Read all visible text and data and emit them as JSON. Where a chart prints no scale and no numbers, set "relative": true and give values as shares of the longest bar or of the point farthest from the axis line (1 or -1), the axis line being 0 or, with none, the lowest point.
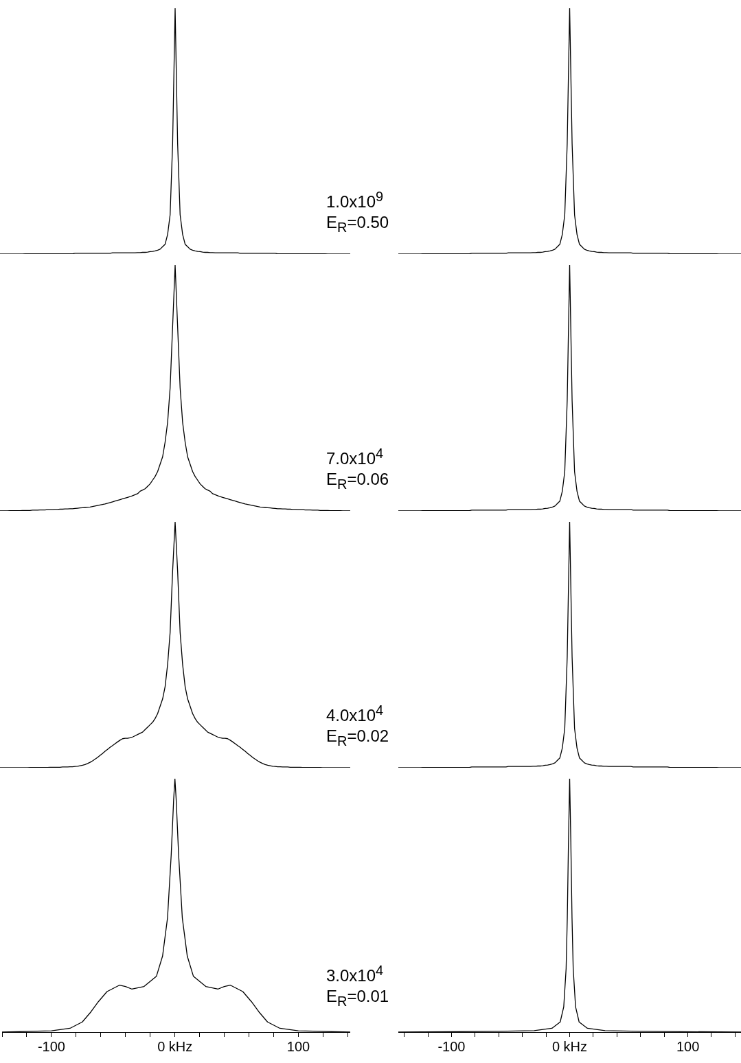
{
  "chart_data": [
    {
      "type": "line",
      "relative": true,
      "tick_labels": false,
      "color": "#000000",
      "categories": [
        null,
        null,
        null,
        null,
        null,
        null,
        null,
        null,
        null,
        null,
        null,
        null,
        null,
        null,
        null,
        null,
        null,
        null,
        null,
        null,
        null,
        null,
        null,
        null,
        null,
        null,
        null,
        null,
        null,
        null,
        null,
        null,
        null,
        null,
        null,
        null,
        null,
        null,
        null,
        null,
        null,
        null,
        null,
        null,
        null,
        null,
        null,
        null,
        null,
        null,
        null,
        null,
        null,
        null,
        null,
        null,
        null,
        null,
        null,
        null,
        null,
        null,
        null,
        null,
        null,
        null,
        null,
        null,
        null,
        null,
        null,
        null,
        null,
        null,
        null,
        null,
        null,
        null,
        null,
        null,
        null,
        null,
        null,
        null,
        null,
        null,
        null,
        null,
        null,
        null,
        null,
        null,
        null,
        null,
        null,
        null,
        null,
        null,
        null,
        null,
        null,
        null,
        null,
        null,
        null,
        null,
        null,
        null,
        null,
        null,
        null,
        null,
        null,
        null,
        null,
        null,
        null,
        null,
        null,
        null,
        null,
        null,
        null,
        null,
        null,
        null,
        null,
        null,
        null,
        null,
        null,
        null,
        null,
        null,
        null,
        null,
        null,
        null,
        null,
        null,
        null
      ],
      "values": [
        0,
        0,
        0,
        0,
        0,
        0,
        0,
        0,
        0,
        0,
        0.001,
        0.001,
        0.001,
        0.001,
        0.001,
        0.001,
        0.001,
        0.001,
        0.001,
        0.001,
        0.001,
        0.001,
        0.001,
        0.001,
        0.001,
        0.001,
        0.001,
        0.001,
        0.001,
        0.001,
        0.003,
        0.003,
        0.003,
        0.003,
        0.003,
        0.003,
        0.003,
        0.003,
        0.003,
        0.003,
        0.003,
        0.003,
        0.003,
        0.003,
        0.003,
        0.005,
        0.005,
        0.005,
        0.005,
        0.005,
        0.005,
        0.005,
        0.005,
        0.005,
        0.005,
        0.006,
        0.006,
        0.007,
        0.007,
        0.008,
        0.01,
        0.011,
        0.013,
        0.016,
        0.02,
        0.03,
        0.04,
        0.08,
        0.16,
        0.45,
        1,
        0.45,
        0.16,
        0.08,
        0.04,
        0.03,
        0.02,
        0.016,
        0.013,
        0.011,
        0.01,
        0.008,
        0.007,
        0.007,
        0.006,
        0.006,
        0.005,
        0.005,
        0.005,
        0.005,
        0.005,
        0.005,
        0.005,
        0.005,
        0.005,
        0.005,
        0.003,
        0.003,
        0.003,
        0.003,
        0.003,
        0.003,
        0.003,
        0.003,
        0.003,
        0.003,
        0.003,
        0.003,
        0.003,
        0.003,
        0.003,
        0.001,
        0.001,
        0.001,
        0.001,
        0.001,
        0.001,
        0.001,
        0.001,
        0.001,
        0.001,
        0.001,
        0.001,
        0.001,
        0.001,
        0.001,
        0.001,
        0.001,
        0.001,
        0.001,
        0.001,
        0,
        0,
        0,
        0,
        0,
        0,
        0,
        0,
        0,
        0
      ],
      "annotations": [
        "1.0x10$^{9}$",
        "E$_{R}$=0.50"
      ]
    },
    {
      "type": "line",
      "relative": true,
      "tick_labels": false,
      "color": "#000000",
      "categories": [
        null,
        null,
        null,
        null,
        null,
        null,
        null,
        null,
        null,
        null,
        null,
        null,
        null,
        null,
        null,
        null,
        null,
        null,
        null,
        null,
        null,
        null,
        null,
        null,
        null,
        null,
        null,
        null,
        null,
        null,
        null,
        null,
        null,
        null,
        null,
        null,
        null,
        null,
        null,
        null,
        null,
        null,
        null,
        null,
        null,
        null,
        null,
        null,
        null,
        null,
        null,
        null,
        null,
        null,
        null,
        null,
        null,
        null,
        null,
        null,
        null,
        null,
        null,
        null,
        null,
        null,
        null,
        null,
        null,
        null,
        null,
        null,
        null,
        null,
        null,
        null,
        null,
        null,
        null,
        null,
        null,
        null,
        null,
        null,
        null,
        null,
        null,
        null,
        null,
        null,
        null,
        null,
        null,
        null,
        null,
        null,
        null,
        null,
        null,
        null,
        null,
        null,
        null,
        null,
        null,
        null,
        null,
        null,
        null,
        null,
        null,
        null,
        null,
        null,
        null,
        null,
        null,
        null,
        null,
        null,
        null,
        null,
        null,
        null,
        null,
        null,
        null,
        null,
        null,
        null,
        null,
        null,
        null,
        null,
        null,
        null,
        null,
        null,
        null,
        null,
        null
      ],
      "values": [
        0,
        0,
        0,
        0,
        0,
        0,
        0,
        0,
        0,
        0,
        0.001,
        0.001,
        0.001,
        0.001,
        0.001,
        0.001,
        0.001,
        0.001,
        0.001,
        0.001,
        0.001,
        0.001,
        0.001,
        0.001,
        0.001,
        0.001,
        0.001,
        0.001,
        0.001,
        0.001,
        0.003,
        0.003,
        0.003,
        0.003,
        0.003,
        0.003,
        0.003,
        0.003,
        0.003,
        0.003,
        0.003,
        0.003,
        0.003,
        0.003,
        0.003,
        0.005,
        0.005,
        0.005,
        0.005,
        0.005,
        0.005,
        0.005,
        0.005,
        0.005,
        0.005,
        0.006,
        0.006,
        0.007,
        0.007,
        0.008,
        0.01,
        0.011,
        0.013,
        0.016,
        0.02,
        0.03,
        0.04,
        0.08,
        0.16,
        0.45,
        1,
        0.45,
        0.16,
        0.08,
        0.04,
        0.03,
        0.02,
        0.016,
        0.013,
        0.011,
        0.01,
        0.008,
        0.007,
        0.007,
        0.006,
        0.006,
        0.005,
        0.005,
        0.005,
        0.005,
        0.005,
        0.005,
        0.005,
        0.005,
        0.005,
        0.005,
        0.003,
        0.003,
        0.003,
        0.003,
        0.003,
        0.003,
        0.003,
        0.003,
        0.003,
        0.003,
        0.003,
        0.003,
        0.003,
        0.003,
        0.003,
        0.001,
        0.001,
        0.001,
        0.001,
        0.001,
        0.001,
        0.001,
        0.001,
        0.001,
        0.001,
        0.001,
        0.001,
        0.001,
        0.001,
        0.001,
        0.001,
        0.001,
        0.001,
        0.001,
        0.001,
        0,
        0,
        0,
        0,
        0,
        0,
        0,
        0,
        0,
        0
      ]
    },
    {
      "type": "line",
      "relative": true,
      "tick_labels": false,
      "color": "#000000",
      "categories": [
        null,
        null,
        null,
        null,
        null,
        null,
        null,
        null,
        null,
        null,
        null,
        null,
        null,
        null,
        null,
        null,
        null,
        null,
        null,
        null,
        null,
        null,
        null,
        null,
        null,
        null,
        null,
        null,
        null,
        null,
        null,
        null,
        null,
        null,
        null,
        null,
        null,
        null,
        null,
        null,
        null,
        null,
        null,
        null,
        null,
        null,
        null,
        null,
        null,
        null,
        null,
        null,
        null,
        null,
        null,
        null,
        null,
        null,
        null,
        null,
        null,
        null,
        null,
        null,
        null,
        null,
        null,
        null,
        null,
        null,
        null,
        null,
        null,
        null,
        null,
        null,
        null,
        null,
        null,
        null,
        null,
        null,
        null,
        null,
        null,
        null,
        null,
        null,
        null,
        null,
        null,
        null,
        null,
        null,
        null,
        null,
        null,
        null,
        null,
        null,
        null,
        null,
        null,
        null,
        null,
        null,
        null,
        null,
        null,
        null,
        null,
        null,
        null,
        null,
        null,
        null,
        null,
        null,
        null,
        null,
        null,
        null,
        null,
        null,
        null,
        null,
        null,
        null,
        null,
        null,
        null,
        null,
        null,
        null,
        null,
        null,
        null,
        null,
        null,
        null,
        null
      ],
      "values": [
        0,
        0,
        0,
        0,
        0.001,
        0.001,
        0.001,
        0.001,
        0.001,
        0.002,
        0.002,
        0.002,
        0.002,
        0.003,
        0.003,
        0.003,
        0.004,
        0.004,
        0.004,
        0.005,
        0.005,
        0.005,
        0.006,
        0.006,
        0.007,
        0.007,
        0.008,
        0.008,
        0.009,
        0.009,
        0.01,
        0.011,
        0.012,
        0.013,
        0.014,
        0.015,
        0.016,
        0.018,
        0.02,
        0.022,
        0.024,
        0.026,
        0.028,
        0.031,
        0.034,
        0.037,
        0.04,
        0.043,
        0.046,
        0.049,
        0.052,
        0.055,
        0.058,
        0.062,
        0.066,
        0.07,
        0.08,
        0.085,
        0.09,
        0.1,
        0.11,
        0.125,
        0.14,
        0.16,
        0.19,
        0.22,
        0.28,
        0.36,
        0.5,
        0.75,
        1,
        0.75,
        0.5,
        0.36,
        0.28,
        0.22,
        0.19,
        0.16,
        0.14,
        0.125,
        0.11,
        0.1,
        0.09,
        0.085,
        0.08,
        0.07,
        0.066,
        0.062,
        0.058,
        0.055,
        0.052,
        0.049,
        0.046,
        0.043,
        0.04,
        0.037,
        0.034,
        0.031,
        0.028,
        0.026,
        0.024,
        0.022,
        0.02,
        0.018,
        0.016,
        0.015,
        0.014,
        0.013,
        0.012,
        0.011,
        0.01,
        0.009,
        0.009,
        0.008,
        0.008,
        0.007,
        0.007,
        0.006,
        0.006,
        0.005,
        0.005,
        0.005,
        0.004,
        0.004,
        0.004,
        0.003,
        0.003,
        0.003,
        0.002,
        0.002,
        0.002,
        0.002,
        0.001,
        0.001,
        0.001,
        0.001,
        0.001,
        0,
        0,
        0,
        0
      ],
      "annotations": [
        "7.0x10$^{4}$",
        "E$_{R}$=0.06"
      ]
    },
    {
      "type": "line",
      "relative": true,
      "tick_labels": false,
      "color": "#000000",
      "categories": [
        null,
        null,
        null,
        null,
        null,
        null,
        null,
        null,
        null,
        null,
        null,
        null,
        null,
        null,
        null,
        null,
        null,
        null,
        null,
        null,
        null,
        null,
        null,
        null,
        null,
        null,
        null,
        null,
        null,
        null,
        null,
        null,
        null,
        null,
        null,
        null,
        null,
        null,
        null,
        null,
        null,
        null,
        null,
        null,
        null,
        null,
        null,
        null,
        null,
        null,
        null,
        null,
        null,
        null,
        null,
        null,
        null,
        null,
        null,
        null,
        null,
        null,
        null,
        null,
        null,
        null,
        null,
        null,
        null,
        null,
        null,
        null,
        null,
        null,
        null,
        null,
        null,
        null,
        null,
        null,
        null,
        null,
        null,
        null,
        null,
        null,
        null,
        null,
        null,
        null,
        null,
        null,
        null,
        null,
        null,
        null,
        null,
        null,
        null,
        null,
        null,
        null,
        null,
        null,
        null,
        null,
        null,
        null,
        null,
        null,
        null,
        null,
        null,
        null,
        null,
        null,
        null,
        null,
        null,
        null,
        null,
        null,
        null,
        null,
        null,
        null,
        null,
        null,
        null,
        null,
        null,
        null,
        null,
        null,
        null,
        null,
        null,
        null,
        null,
        null,
        null
      ],
      "values": [
        0,
        0,
        0,
        0,
        0,
        0,
        0,
        0,
        0,
        0,
        0.001,
        0.001,
        0.001,
        0.001,
        0.001,
        0.001,
        0.001,
        0.001,
        0.001,
        0.001,
        0.001,
        0.001,
        0.001,
        0.001,
        0.001,
        0.001,
        0.001,
        0.001,
        0.001,
        0.001,
        0.003,
        0.003,
        0.003,
        0.003,
        0.003,
        0.003,
        0.003,
        0.003,
        0.003,
        0.003,
        0.003,
        0.003,
        0.003,
        0.003,
        0.003,
        0.005,
        0.005,
        0.005,
        0.005,
        0.005,
        0.005,
        0.005,
        0.005,
        0.005,
        0.005,
        0.006,
        0.006,
        0.007,
        0.007,
        0.008,
        0.01,
        0.011,
        0.013,
        0.016,
        0.02,
        0.03,
        0.04,
        0.08,
        0.16,
        0.45,
        1,
        0.45,
        0.16,
        0.08,
        0.04,
        0.03,
        0.02,
        0.016,
        0.013,
        0.011,
        0.01,
        0.008,
        0.007,
        0.007,
        0.006,
        0.006,
        0.005,
        0.005,
        0.005,
        0.005,
        0.005,
        0.005,
        0.005,
        0.005,
        0.005,
        0.005,
        0.003,
        0.003,
        0.003,
        0.003,
        0.003,
        0.003,
        0.003,
        0.003,
        0.003,
        0.003,
        0.003,
        0.003,
        0.003,
        0.003,
        0.003,
        0.001,
        0.001,
        0.001,
        0.001,
        0.001,
        0.001,
        0.001,
        0.001,
        0.001,
        0.001,
        0.001,
        0.001,
        0.001,
        0.001,
        0.001,
        0.001,
        0.001,
        0.001,
        0.001,
        0.001,
        0,
        0,
        0,
        0,
        0,
        0,
        0,
        0,
        0,
        0
      ]
    },
    {
      "type": "line",
      "relative": true,
      "tick_labels": false,
      "color": "#000000",
      "categories": [
        null,
        null,
        null,
        null,
        null,
        null,
        null,
        null,
        null,
        null,
        null,
        null,
        null,
        null,
        null,
        null,
        null,
        null,
        null,
        null,
        null,
        null,
        null,
        null,
        null,
        null,
        null,
        null,
        null,
        null,
        null,
        null,
        null,
        null,
        null,
        null,
        null,
        null,
        null,
        null,
        null,
        null,
        null,
        null,
        null,
        null,
        null,
        null,
        null,
        null,
        null,
        null,
        null,
        null,
        null,
        null,
        null,
        null,
        null,
        null,
        null,
        null,
        null,
        null,
        null,
        null,
        null,
        null,
        null,
        null,
        null,
        null,
        null,
        null,
        null,
        null,
        null,
        null,
        null,
        null,
        null,
        null,
        null,
        null,
        null,
        null,
        null,
        null,
        null,
        null,
        null,
        null,
        null,
        null,
        null,
        null,
        null,
        null,
        null,
        null,
        null,
        null,
        null,
        null,
        null,
        null,
        null,
        null,
        null,
        null,
        null,
        null,
        null,
        null,
        null,
        null,
        null,
        null,
        null,
        null,
        null,
        null,
        null,
        null,
        null,
        null,
        null,
        null,
        null,
        null,
        null,
        null,
        null,
        null,
        null,
        null,
        null,
        null,
        null,
        null,
        null
      ],
      "values": [
        0,
        0,
        0,
        0,
        0,
        0,
        0,
        0,
        0,
        0,
        0,
        0,
        0.001,
        0.001,
        0.001,
        0.001,
        0.001,
        0.001,
        0.001,
        0.001,
        0.002,
        0.002,
        0.002,
        0.002,
        0.002,
        0.003,
        0.003,
        0.003,
        0.004,
        0.004,
        0.005,
        0.006,
        0.008,
        0.01,
        0.013,
        0.017,
        0.022,
        0.028,
        0.035,
        0.042,
        0.05,
        0.058,
        0.067,
        0.075,
        0.083,
        0.09,
        0.098,
        0.105,
        0.112,
        0.118,
        0.12,
        0.12,
        0.122,
        0.125,
        0.13,
        0.135,
        0.14,
        0.145,
        0.155,
        0.165,
        0.175,
        0.185,
        0.2,
        0.22,
        0.25,
        0.28,
        0.33,
        0.42,
        0.55,
        0.8,
        1,
        0.8,
        0.55,
        0.42,
        0.33,
        0.28,
        0.25,
        0.22,
        0.2,
        0.185,
        0.175,
        0.165,
        0.155,
        0.145,
        0.14,
        0.135,
        0.13,
        0.125,
        0.122,
        0.12,
        0.12,
        0.118,
        0.112,
        0.105,
        0.098,
        0.09,
        0.083,
        0.075,
        0.067,
        0.058,
        0.05,
        0.042,
        0.035,
        0.028,
        0.022,
        0.017,
        0.013,
        0.01,
        0.008,
        0.006,
        0.005,
        0.004,
        0.004,
        0.003,
        0.003,
        0.003,
        0.002,
        0.002,
        0.002,
        0.002,
        0.002,
        0.001,
        0.001,
        0.001,
        0.001,
        0.001,
        0.001,
        0.001,
        0.001,
        0,
        0,
        0,
        0,
        0,
        0,
        0,
        0,
        0,
        0,
        0,
        0
      ],
      "annotations": [
        "4.0x10$^{4}$",
        "E$_{R}$=0.02"
      ]
    },
    {
      "type": "line",
      "relative": true,
      "tick_labels": false,
      "color": "#000000",
      "categories": [
        null,
        null,
        null,
        null,
        null,
        null,
        null,
        null,
        null,
        null,
        null,
        null,
        null,
        null,
        null,
        null,
        null,
        null,
        null,
        null,
        null,
        null,
        null,
        null,
        null,
        null,
        null,
        null,
        null,
        null,
        null,
        null,
        null,
        null,
        null,
        null,
        null,
        null,
        null,
        null,
        null,
        null,
        null,
        null,
        null,
        null,
        null,
        null,
        null,
        null,
        null,
        null,
        null,
        null,
        null,
        null,
        null,
        null,
        null,
        null,
        null,
        null,
        null,
        null,
        null,
        null,
        null,
        null,
        null,
        null,
        null,
        null,
        null,
        null,
        null,
        null,
        null,
        null,
        null,
        null,
        null,
        null,
        null,
        null,
        null,
        null,
        null,
        null,
        null,
        null,
        null,
        null,
        null,
        null,
        null,
        null,
        null,
        null,
        null,
        null,
        null,
        null,
        null,
        null,
        null,
        null,
        null,
        null,
        null,
        null,
        null,
        null,
        null,
        null,
        null,
        null,
        null,
        null,
        null,
        null,
        null,
        null,
        null,
        null,
        null,
        null,
        null,
        null,
        null,
        null,
        null,
        null,
        null,
        null,
        null,
        null,
        null,
        null,
        null,
        null,
        null
      ],
      "values": [
        0,
        0,
        0,
        0,
        0,
        0,
        0,
        0,
        0,
        0,
        0.001,
        0.001,
        0.001,
        0.001,
        0.001,
        0.001,
        0.001,
        0.001,
        0.001,
        0.001,
        0.001,
        0.001,
        0.001,
        0.001,
        0.001,
        0.001,
        0.001,
        0.001,
        0.001,
        0.001,
        0.003,
        0.003,
        0.003,
        0.003,
        0.003,
        0.003,
        0.003,
        0.003,
        0.003,
        0.003,
        0.003,
        0.003,
        0.003,
        0.003,
        0.003,
        0.005,
        0.005,
        0.005,
        0.005,
        0.005,
        0.005,
        0.005,
        0.005,
        0.005,
        0.005,
        0.006,
        0.006,
        0.007,
        0.007,
        0.008,
        0.01,
        0.011,
        0.013,
        0.016,
        0.02,
        0.03,
        0.04,
        0.08,
        0.16,
        0.45,
        1,
        0.45,
        0.16,
        0.08,
        0.04,
        0.03,
        0.02,
        0.016,
        0.013,
        0.011,
        0.01,
        0.008,
        0.007,
        0.007,
        0.006,
        0.006,
        0.005,
        0.005,
        0.005,
        0.005,
        0.005,
        0.005,
        0.005,
        0.005,
        0.005,
        0.005,
        0.003,
        0.003,
        0.003,
        0.003,
        0.003,
        0.003,
        0.003,
        0.003,
        0.003,
        0.003,
        0.003,
        0.003,
        0.003,
        0.003,
        0.003,
        0.001,
        0.001,
        0.001,
        0.001,
        0.001,
        0.001,
        0.001,
        0.001,
        0.001,
        0.001,
        0.001,
        0.001,
        0.001,
        0.001,
        0.001,
        0.001,
        0.001,
        0.001,
        0.001,
        0.001,
        0,
        0,
        0,
        0,
        0,
        0,
        0,
        0,
        0,
        0
      ]
    },
    {
      "type": "line",
      "relative": true,
      "tick_labels": "x",
      "color": "#000000",
      "xlim": [
        -140,
        142
      ],
      "xticks": [
        {
          "value": -140,
          "label": null
        },
        {
          "value": -120,
          "label": null
        },
        {
          "value": -100,
          "label": "-100"
        },
        {
          "value": -80,
          "label": null
        },
        {
          "value": -60,
          "label": null
        },
        {
          "value": -40,
          "label": null
        },
        {
          "value": -20,
          "label": null
        },
        {
          "value": 0,
          "label": "0 kHz"
        },
        {
          "value": 20,
          "label": null
        },
        {
          "value": 40,
          "label": null
        },
        {
          "value": 60,
          "label": null
        },
        {
          "value": 80,
          "label": null
        },
        {
          "value": 100,
          "label": "100"
        },
        {
          "value": 120,
          "label": null
        },
        {
          "value": 140,
          "label": null
        }
      ],
      "x": [
        -140,
        -100,
        -85,
        -75,
        -68,
        -62,
        -55,
        -45,
        -40,
        -35,
        -25,
        -15,
        -10,
        -6,
        -3,
        -1,
        0,
        1,
        3,
        6,
        10,
        15,
        25,
        35,
        40,
        45,
        55,
        62,
        68,
        75,
        85,
        100,
        142
      ],
      "values": [
        0,
        0.005,
        0.015,
        0.04,
        0.08,
        0.12,
        0.16,
        0.185,
        0.18,
        0.17,
        0.18,
        0.22,
        0.3,
        0.45,
        0.7,
        0.92,
        1,
        0.92,
        0.7,
        0.45,
        0.3,
        0.22,
        0.18,
        0.17,
        0.18,
        0.185,
        0.16,
        0.12,
        0.08,
        0.04,
        0.015,
        0.005,
        0
      ],
      "annotations": [
        "3.0x10$^{4}$",
        "E$_{R}$=0.01"
      ]
    },
    {
      "type": "line",
      "relative": true,
      "tick_labels": "x",
      "color": "#000000",
      "xlim": [
        -145,
        145
      ],
      "xticks": [
        {
          "value": -140,
          "label": null
        },
        {
          "value": -120,
          "label": null
        },
        {
          "value": -100,
          "label": "-100"
        },
        {
          "value": -80,
          "label": null
        },
        {
          "value": -60,
          "label": null
        },
        {
          "value": -40,
          "label": null
        },
        {
          "value": -20,
          "label": null
        },
        {
          "value": 0,
          "label": "0 kHz"
        },
        {
          "value": 20,
          "label": null
        },
        {
          "value": 40,
          "label": null
        },
        {
          "value": 60,
          "label": null
        },
        {
          "value": 80,
          "label": null
        },
        {
          "value": 100,
          "label": "100"
        },
        {
          "value": 120,
          "label": null
        },
        {
          "value": 140,
          "label": null
        }
      ],
      "x": [
        -145,
        -60,
        -30,
        -15,
        -8,
        -5,
        -3,
        -2,
        -1,
        0,
        1,
        2,
        3,
        5,
        8,
        15,
        30,
        60,
        145
      ],
      "values": [
        0,
        0.003,
        0.006,
        0.015,
        0.04,
        0.1,
        0.25,
        0.45,
        0.75,
        1,
        0.75,
        0.45,
        0.25,
        0.1,
        0.04,
        0.015,
        0.006,
        0.003,
        0
      ]
    }
  ]
}
